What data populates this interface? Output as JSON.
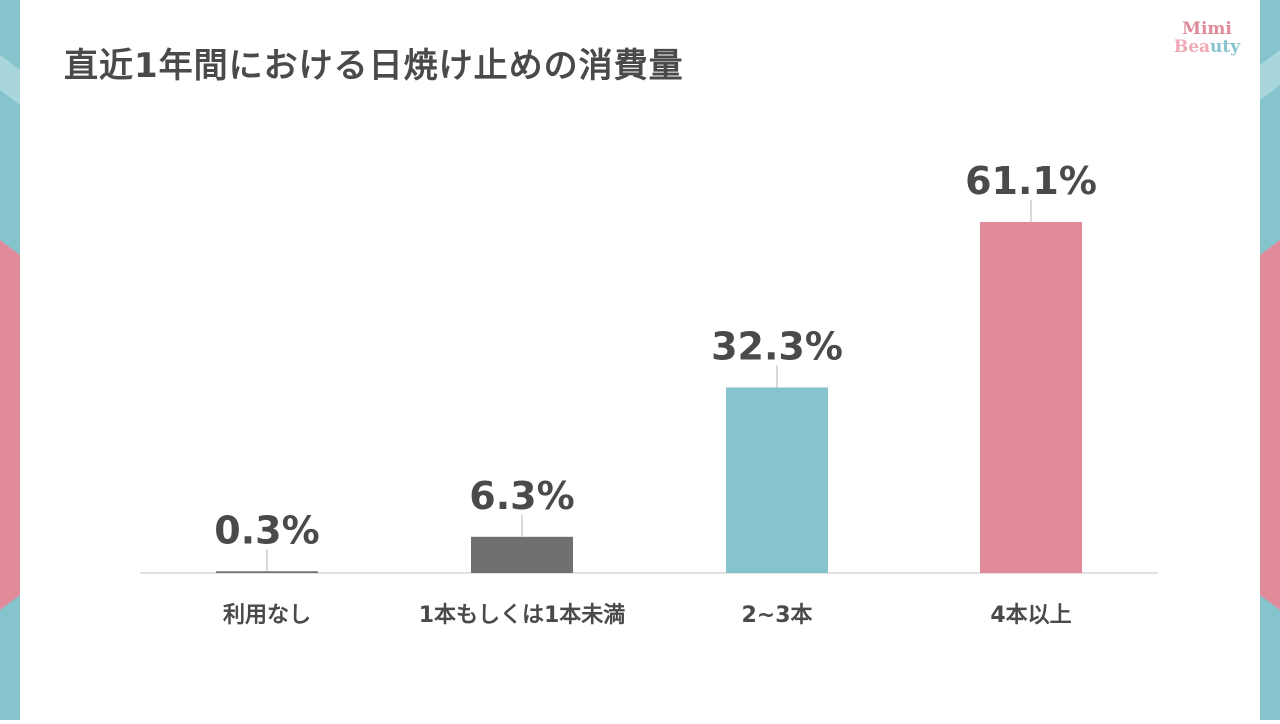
{
  "page": {
    "title": "直近1年間における日焼け止めの消費量"
  },
  "logo": {
    "line1": "Mimi",
    "line2a": "Bea",
    "line2b": "uty"
  },
  "colors": {
    "teal": "#86c4cd",
    "pink": "#e08a9a",
    "gray": "#707070",
    "text": "#4a4a4a",
    "axis": "#d9d9d9"
  },
  "chart_data": {
    "type": "bar",
    "title": "直近1年間における日焼け止めの消費量",
    "categories": [
      "利用なし",
      "1本もしくは1本未満",
      "2~3本",
      "4本以上"
    ],
    "values": [
      0.3,
      6.3,
      32.3,
      61.1
    ],
    "data_labels": [
      "0.3%",
      "6.3%",
      "32.3%",
      "61.1%"
    ],
    "bar_colors": [
      "#707070",
      "#707070",
      "#86c4cd",
      "#e08a9a"
    ],
    "unit": "%",
    "ylim": [
      0,
      61.1
    ],
    "grid": false,
    "legend": "none"
  }
}
